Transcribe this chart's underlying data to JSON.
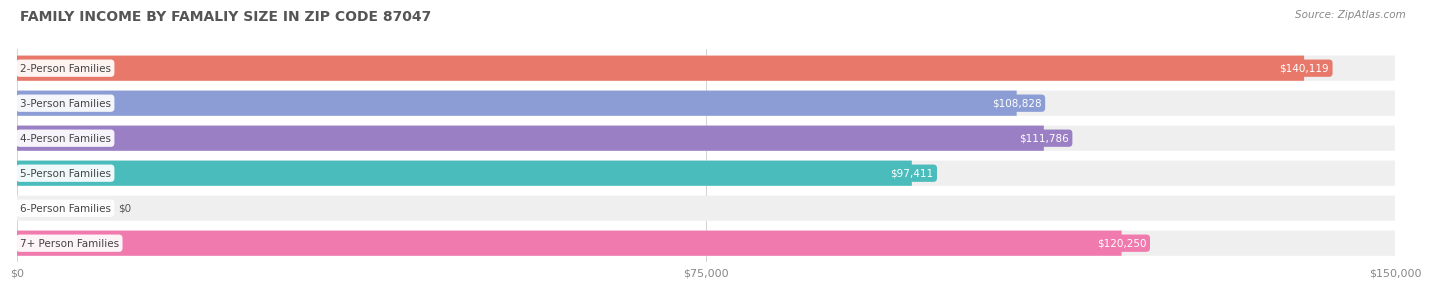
{
  "title": "FAMILY INCOME BY FAMALIY SIZE IN ZIP CODE 87047",
  "source": "Source: ZipAtlas.com",
  "categories": [
    "2-Person Families",
    "3-Person Families",
    "4-Person Families",
    "5-Person Families",
    "6-Person Families",
    "7+ Person Families"
  ],
  "values": [
    140119,
    108828,
    111786,
    97411,
    0,
    120250
  ],
  "labels": [
    "$140,119",
    "$108,828",
    "$111,786",
    "$97,411",
    "$0",
    "$120,250"
  ],
  "bar_colors": [
    "#E8796A",
    "#8B9DD4",
    "#9B7FC4",
    "#4ABCBC",
    "#C0C8E8",
    "#F07AAE"
  ],
  "bar_bg_color": "#EFEFEF",
  "xlim": [
    0,
    150000
  ],
  "xticks": [
    0,
    75000,
    150000
  ],
  "xtick_labels": [
    "$0",
    "$75,000",
    "$150,000"
  ],
  "label_color": "#FFFFFF",
  "title_color": "#555555",
  "source_color": "#888888",
  "category_color": "#555555",
  "background_color": "#FFFFFF",
  "zero_bar_value": 10000
}
